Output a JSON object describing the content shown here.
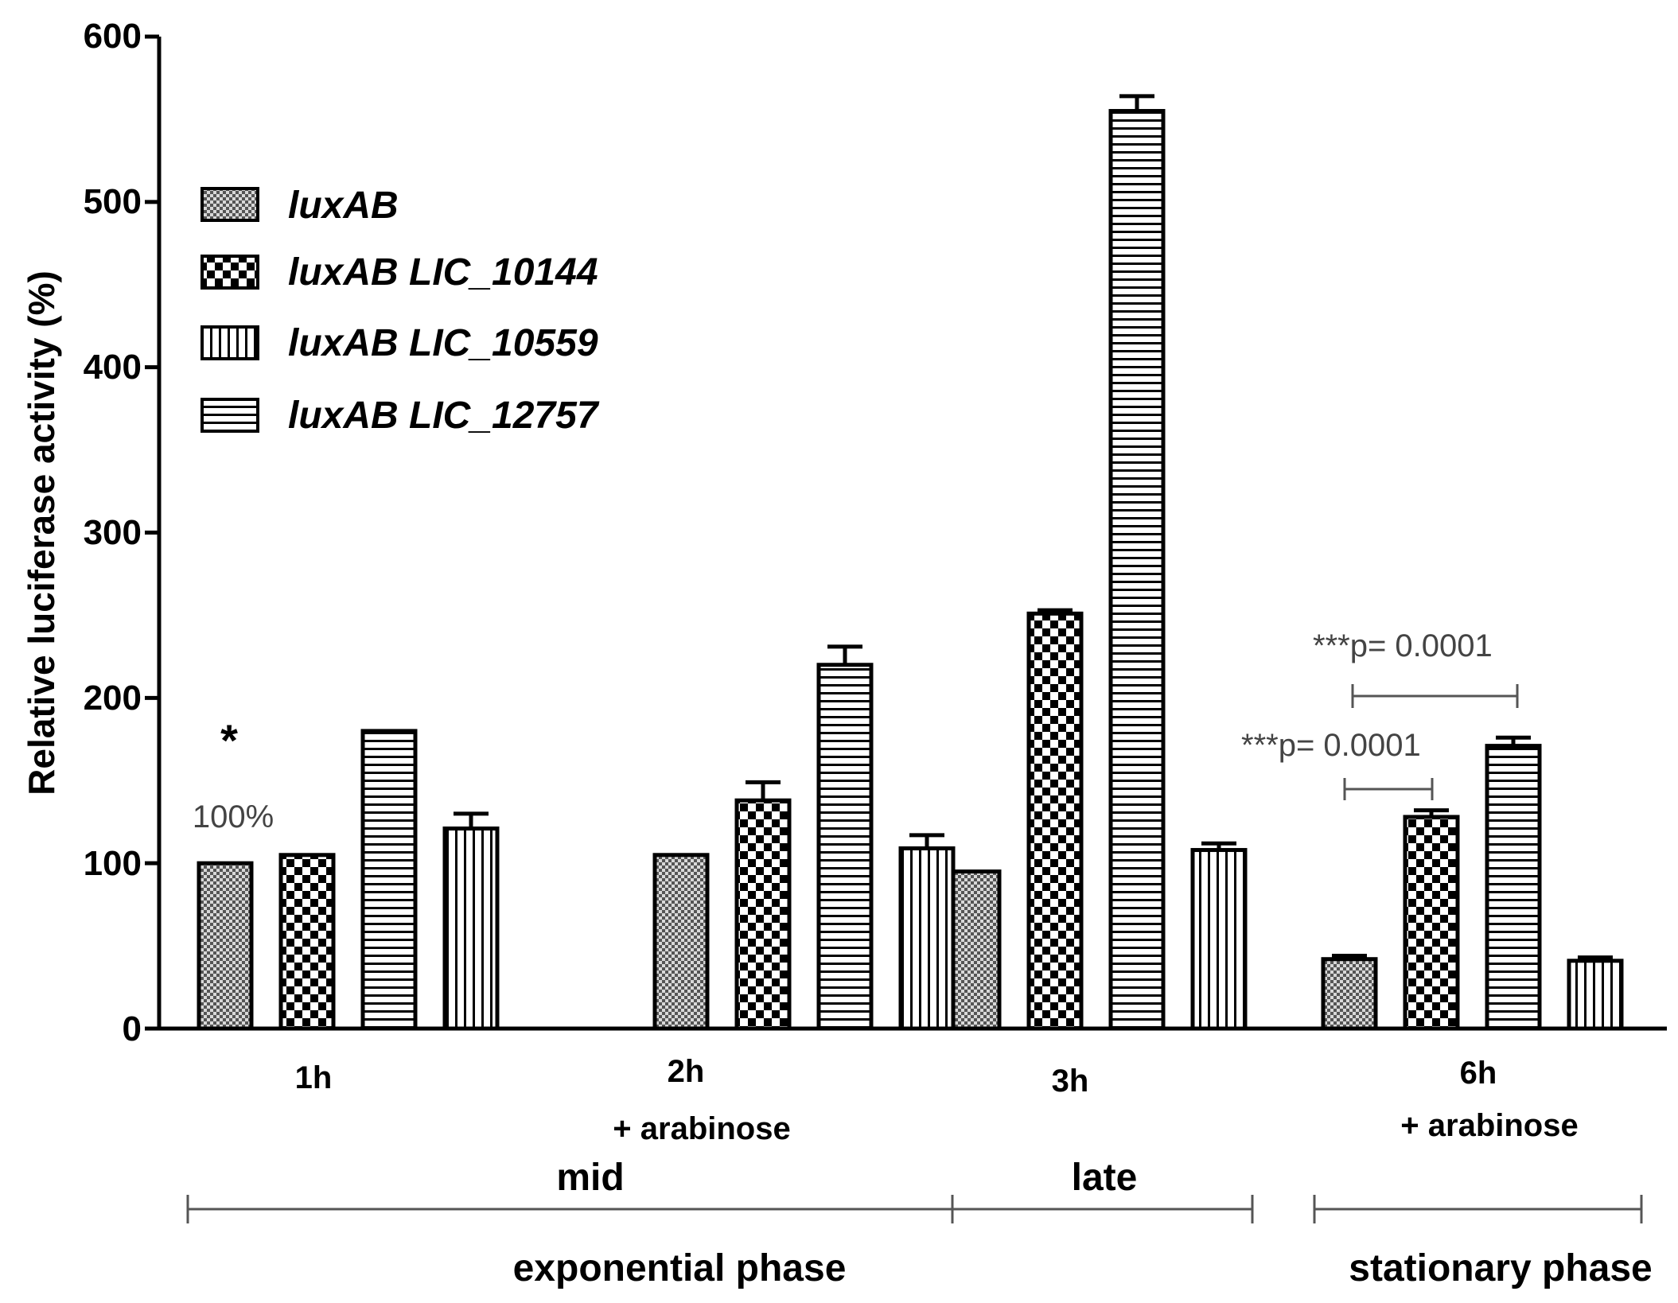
{
  "chart_data": {
    "type": "bar",
    "title": "",
    "xlabel": "",
    "ylabel": "Relative luciferase activity (%)",
    "ylim": [
      0,
      600
    ],
    "yticks": [
      "0",
      "100",
      "200",
      "300",
      "400",
      "500",
      "600"
    ],
    "grid": false,
    "legend_position": "top-left",
    "categories": [
      {
        "label": "1h",
        "sublabel": ""
      },
      {
        "label": "2h",
        "sublabel": "+ arabinose"
      },
      {
        "label": "3h",
        "sublabel": ""
      },
      {
        "label": "6h",
        "sublabel": "+ arabinose"
      }
    ],
    "series": [
      {
        "name": "luxAB",
        "pattern": "fine-checker",
        "values": [
          100,
          105,
          95,
          42
        ],
        "errors": [
          0,
          0,
          0,
          2
        ]
      },
      {
        "name": "luxAB LIC_10144",
        "pattern": "checker",
        "values": [
          105,
          138,
          251,
          128
        ],
        "errors": [
          0,
          11,
          2,
          4
        ]
      },
      {
        "name": "luxAB LIC_12757",
        "pattern": "horizontal-stripes",
        "values": [
          180,
          220,
          555,
          171
        ],
        "errors": [
          0,
          11,
          9,
          5
        ]
      },
      {
        "name": "luxAB LIC_10559",
        "pattern": "vertical-stripes",
        "values": [
          121,
          109,
          108,
          41
        ],
        "errors": [
          9,
          8,
          4,
          2
        ]
      }
    ],
    "legend_order": [
      "luxAB",
      "luxAB LIC_10144",
      "luxAB LIC_10559",
      "luxAB LIC_12757"
    ],
    "annotations": {
      "star": "*",
      "hundred_percent": "100%",
      "sig_1": "***p= 0.0001",
      "sig_2": "***p= 0.0001"
    },
    "phases": {
      "mid": "mid",
      "late": "late",
      "exponential": "exponential phase",
      "stationary": "stationary phase"
    }
  }
}
